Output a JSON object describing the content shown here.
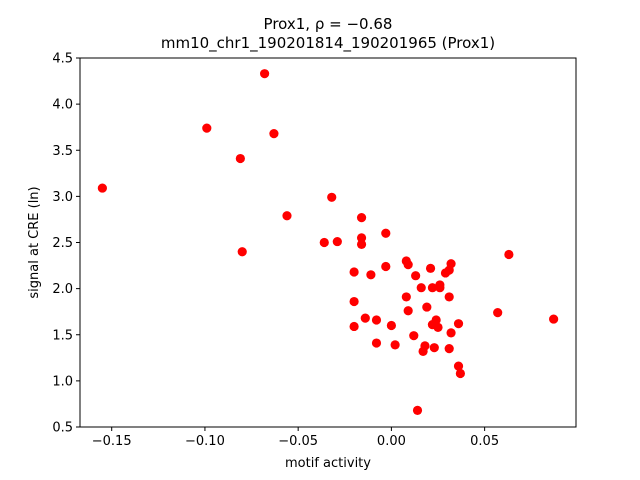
{
  "chart_data": {
    "type": "scatter",
    "title_line1": "Prox1, ρ = −0.68",
    "title_line2": "mm10_chr1_190201814_190201965 (Prox1)",
    "xlabel": "motif activity",
    "ylabel": "signal at CRE (ln)",
    "xlim": [
      -0.167,
      0.099
    ],
    "ylim": [
      0.5,
      4.5
    ],
    "xticks": [
      -0.15,
      -0.1,
      -0.05,
      0.0,
      0.05
    ],
    "xtick_labels": [
      "−0.15",
      "−0.10",
      "−0.05",
      "0.00",
      "0.05"
    ],
    "yticks": [
      0.5,
      1.0,
      1.5,
      2.0,
      2.5,
      3.0,
      3.5,
      4.0,
      4.5
    ],
    "ytick_labels": [
      "0.5",
      "1.0",
      "1.5",
      "2.0",
      "2.5",
      "3.0",
      "3.5",
      "4.0",
      "4.5"
    ],
    "grid": false,
    "marker_color": "#ff0000",
    "series": [
      {
        "points": [
          [
            -0.155,
            3.09
          ],
          [
            -0.099,
            3.74
          ],
          [
            -0.081,
            3.41
          ],
          [
            -0.08,
            2.4
          ],
          [
            -0.068,
            4.33
          ],
          [
            -0.063,
            3.68
          ],
          [
            -0.056,
            2.79
          ],
          [
            -0.036,
            2.5
          ],
          [
            -0.032,
            2.99
          ],
          [
            -0.029,
            2.51
          ],
          [
            -0.02,
            2.18
          ],
          [
            -0.02,
            1.86
          ],
          [
            -0.02,
            1.59
          ],
          [
            -0.016,
            2.77
          ],
          [
            -0.016,
            2.55
          ],
          [
            -0.016,
            2.48
          ],
          [
            -0.014,
            1.68
          ],
          [
            -0.011,
            2.15
          ],
          [
            -0.008,
            1.66
          ],
          [
            -0.008,
            1.41
          ],
          [
            -0.003,
            2.6
          ],
          [
            -0.003,
            2.24
          ],
          [
            0.0,
            1.6
          ],
          [
            0.002,
            1.39
          ],
          [
            0.008,
            2.3
          ],
          [
            0.008,
            1.91
          ],
          [
            0.009,
            2.26
          ],
          [
            0.009,
            1.76
          ],
          [
            0.012,
            1.49
          ],
          [
            0.013,
            2.14
          ],
          [
            0.014,
            0.68
          ],
          [
            0.016,
            2.01
          ],
          [
            0.017,
            1.32
          ],
          [
            0.018,
            1.38
          ],
          [
            0.019,
            1.8
          ],
          [
            0.021,
            2.22
          ],
          [
            0.022,
            2.01
          ],
          [
            0.022,
            1.61
          ],
          [
            0.023,
            1.36
          ],
          [
            0.024,
            1.66
          ],
          [
            0.025,
            1.58
          ],
          [
            0.026,
            2.04
          ],
          [
            0.026,
            2.01
          ],
          [
            0.029,
            2.17
          ],
          [
            0.031,
            2.2
          ],
          [
            0.031,
            1.91
          ],
          [
            0.031,
            1.35
          ],
          [
            0.032,
            2.27
          ],
          [
            0.032,
            1.52
          ],
          [
            0.036,
            1.62
          ],
          [
            0.036,
            1.16
          ],
          [
            0.037,
            1.08
          ],
          [
            0.057,
            1.74
          ],
          [
            0.063,
            2.37
          ],
          [
            0.087,
            1.67
          ]
        ]
      }
    ]
  }
}
